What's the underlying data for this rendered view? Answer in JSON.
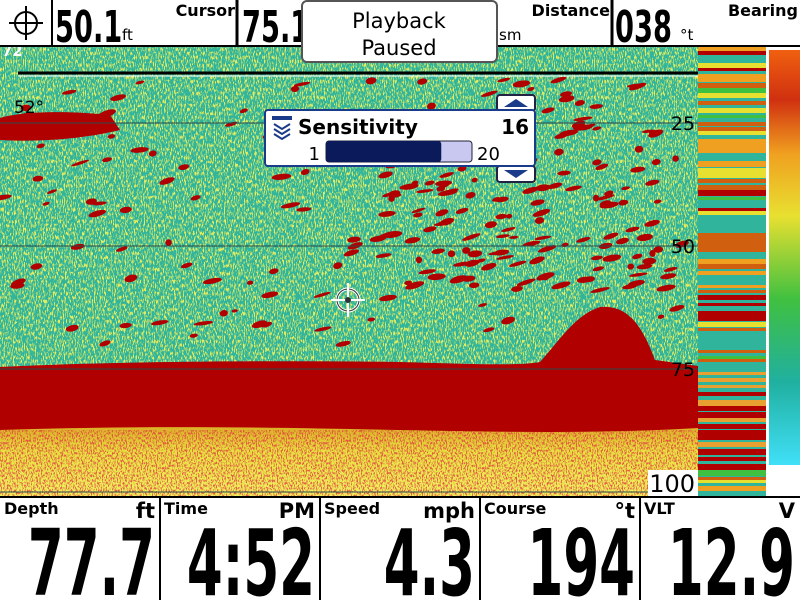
{
  "status_bar": [
    {
      "label": "Cursor",
      "value": "50.1",
      "unit": "ft"
    },
    {
      "label": "Distance",
      "value": "75.1",
      "unit": "sm"
    },
    {
      "label": "Bearing",
      "value": "038",
      "unit": "°t"
    }
  ],
  "playback_notice": [
    "Playback",
    "Paused"
  ],
  "top_depth_label": "72",
  "water_temp": "52°",
  "sensitivity": {
    "label": "Sensitivity",
    "value": 16,
    "min": 1,
    "max": 20
  },
  "depth_scale": [
    25,
    50,
    75,
    100
  ],
  "readouts": [
    {
      "label": "Depth",
      "unit": "ft",
      "value": "77.7"
    },
    {
      "label": "Time",
      "unit": "PM",
      "value": "4:52"
    },
    {
      "label": "Speed",
      "unit": "mph",
      "value": "4.3"
    },
    {
      "label": "Course",
      "unit": "°t",
      "value": "194"
    },
    {
      "label": "VLT",
      "unit": "V",
      "value": "12.9"
    }
  ]
}
